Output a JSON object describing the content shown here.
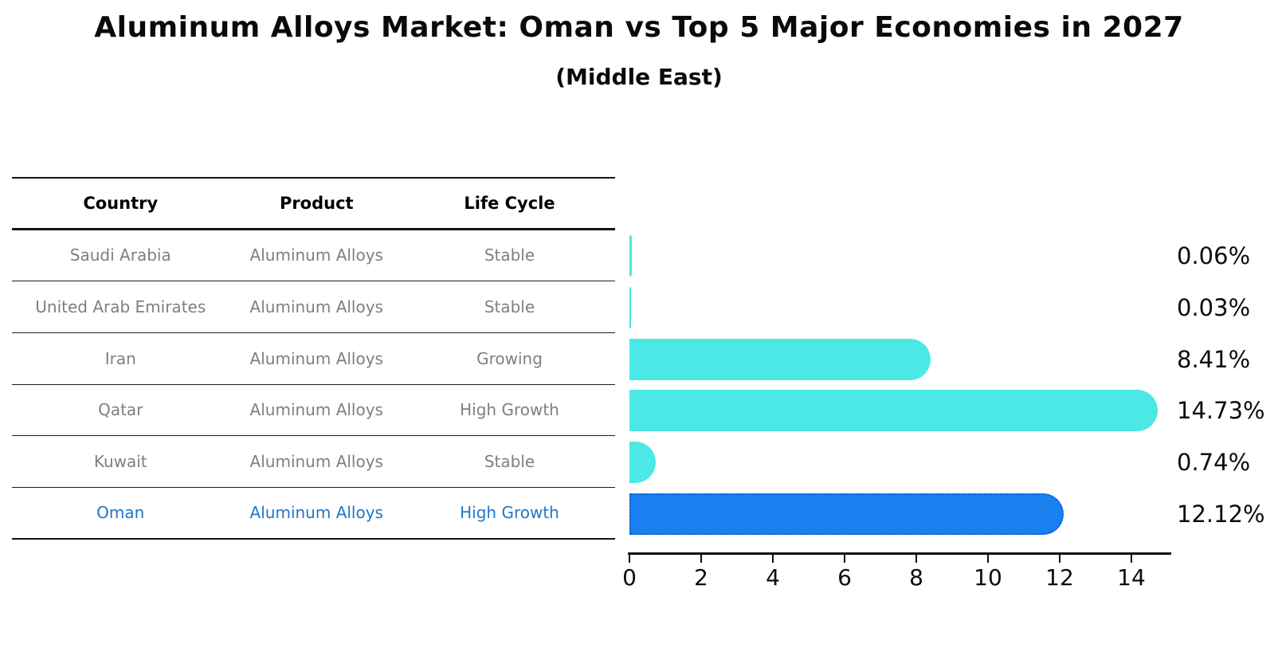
{
  "title": "Aluminum Alloys Market: Oman vs Top 5 Major Economies in 2027",
  "subtitle": "(Middle East)",
  "table": {
    "headers": [
      "Country",
      "Product",
      "Life Cycle"
    ],
    "rows": [
      {
        "country": "Saudi Arabia",
        "product": "Aluminum Alloys",
        "life_cycle": "Stable",
        "highlight": false
      },
      {
        "country": "United Arab Emirates",
        "product": "Aluminum Alloys",
        "life_cycle": "Stable",
        "highlight": false
      },
      {
        "country": "Iran",
        "product": "Aluminum Alloys",
        "life_cycle": "Growing",
        "highlight": false
      },
      {
        "country": "Qatar",
        "product": "Aluminum Alloys",
        "life_cycle": "High Growth",
        "highlight": false
      },
      {
        "country": "Kuwait",
        "product": "Aluminum Alloys",
        "life_cycle": "Stable",
        "highlight": false
      },
      {
        "country": "Oman",
        "product": "Aluminum Alloys",
        "life_cycle": "High Growth",
        "highlight": true
      }
    ]
  },
  "chart_data": {
    "type": "bar",
    "orientation": "horizontal",
    "categories": [
      "Saudi Arabia",
      "United Arab Emirates",
      "Iran",
      "Qatar",
      "Kuwait",
      "Oman"
    ],
    "values": [
      0.06,
      0.03,
      8.41,
      14.73,
      0.74,
      12.12
    ],
    "value_labels": [
      "0.06%",
      "0.03%",
      "8.41%",
      "14.73%",
      "0.74%",
      "12.12%"
    ],
    "highlight_index": 5,
    "title": "Aluminum Alloys Market: Oman vs Top 5 Major Economies in 2027",
    "subtitle": "(Middle East)",
    "xlabel": "",
    "ylabel": "",
    "xlim": [
      0,
      15.1
    ],
    "xticks": [
      0,
      2,
      4,
      6,
      8,
      10,
      12,
      14
    ],
    "grid": false,
    "legend": null
  },
  "colors": {
    "bar": "#4BE8E6",
    "highlight_bar": "#1A80F0",
    "highlight_border": "#0D5FD6",
    "row_text": "#7f7f7f",
    "highlight_text": "#2176C7",
    "axis": "#111111",
    "title_text": "#0a0a0a"
  }
}
